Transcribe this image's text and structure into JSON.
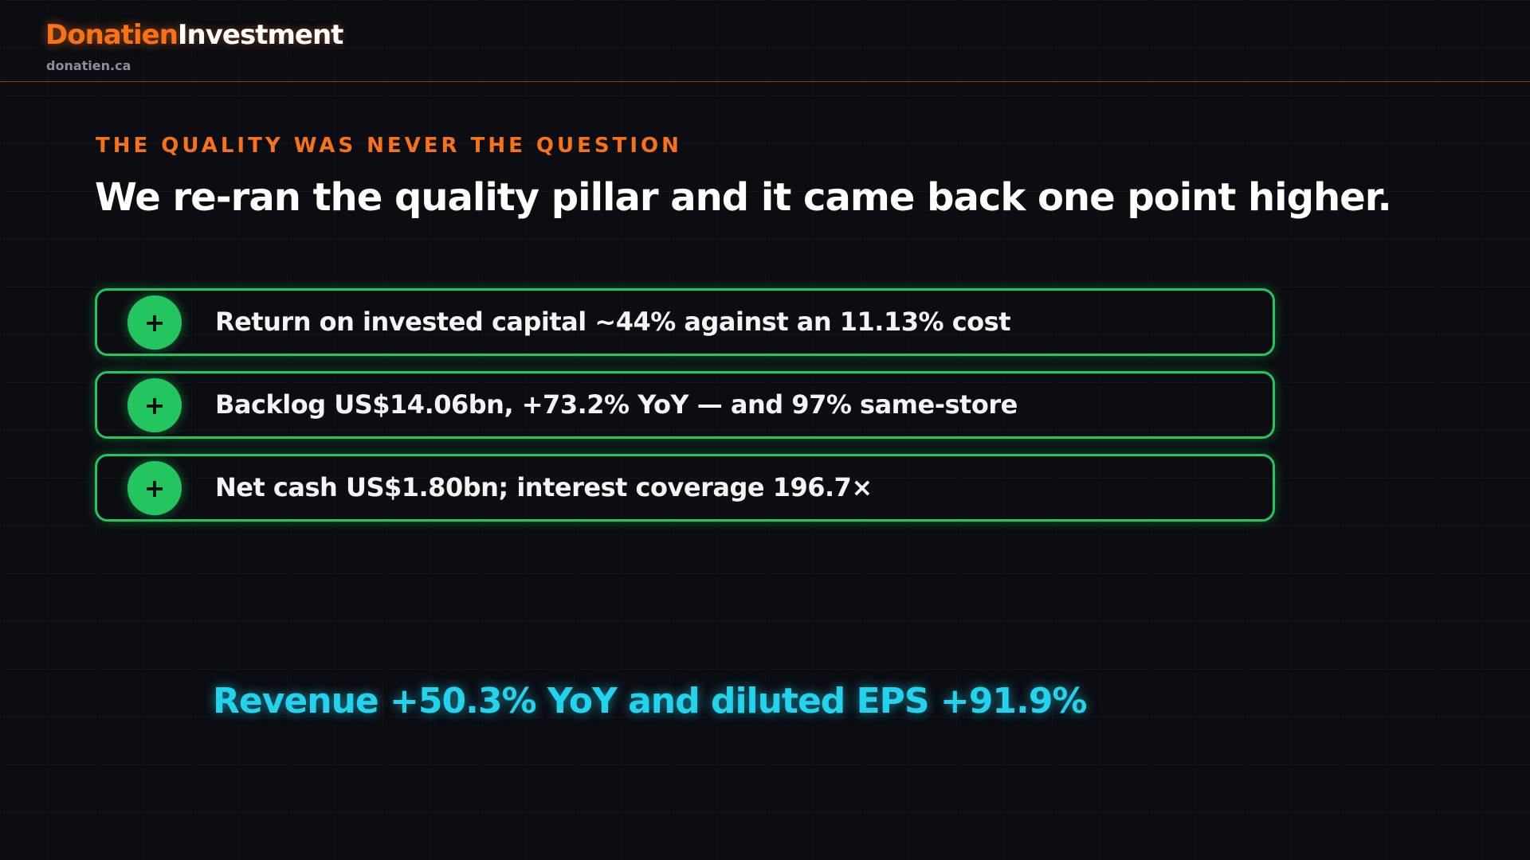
{
  "header": {
    "brand_first": "Donatien",
    "brand_second": "Investment",
    "url": "donatien.ca"
  },
  "eyebrow": "THE QUALITY WAS NEVER THE QUESTION",
  "headline": "We re-ran the quality pillar and it came back one point higher.",
  "points": [
    {
      "icon": "+",
      "text": "Return on invested capital ~44% against an 11.13% cost"
    },
    {
      "icon": "+",
      "text": "Backlog US$14.06bn, +73.2% YoY — and 97% same-store"
    },
    {
      "icon": "+",
      "text": "Net cash US$1.80bn; interest coverage 196.7×"
    }
  ],
  "footer": "Revenue +50.3% YoY and diluted EPS +91.9%"
}
